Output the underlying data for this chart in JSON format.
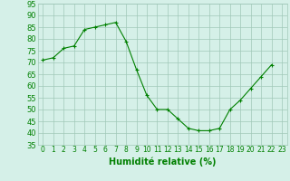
{
  "x": [
    0,
    1,
    2,
    3,
    4,
    5,
    6,
    7,
    8,
    9,
    10,
    11,
    12,
    13,
    14,
    15,
    16,
    17,
    18,
    19,
    20,
    21,
    22,
    23
  ],
  "y": [
    71,
    72,
    76,
    77,
    84,
    85,
    86,
    87,
    79,
    67,
    56,
    50,
    50,
    46,
    42,
    41,
    41,
    42,
    50,
    54,
    59,
    64,
    69,
    null
  ],
  "xlabel": "Humidité relative (%)",
  "ylim": [
    35,
    95
  ],
  "yticks": [
    35,
    40,
    45,
    50,
    55,
    60,
    65,
    70,
    75,
    80,
    85,
    90,
    95
  ],
  "xticks": [
    0,
    1,
    2,
    3,
    4,
    5,
    6,
    7,
    8,
    9,
    10,
    11,
    12,
    13,
    14,
    15,
    16,
    17,
    18,
    19,
    20,
    21,
    22,
    23
  ],
  "line_color": "#008000",
  "marker_color": "#008000",
  "bg_color": "#d5f0e8",
  "grid_color": "#a0c8b8",
  "xlabel_color": "#008000",
  "xlabel_fontsize": 7,
  "ytick_fontsize": 6,
  "xtick_fontsize": 5.5
}
